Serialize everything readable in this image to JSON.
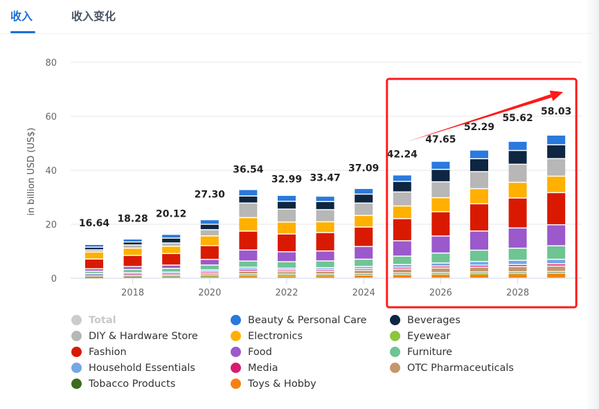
{
  "tabs": [
    {
      "label": "收入",
      "active": true
    },
    {
      "label": "收入变化",
      "active": false
    }
  ],
  "chart_data": {
    "type": "bar",
    "stacked": true,
    "title": "",
    "xlabel": "",
    "ylabel": "in billion USD (US$)",
    "ylim": [
      0,
      80
    ],
    "yticks": [
      0,
      20,
      40,
      60,
      80
    ],
    "xtick_labels_shown": [
      "2018",
      "2020",
      "2022",
      "2024",
      "2026",
      "2028"
    ],
    "grid": true,
    "legend_position": "bottom",
    "categories": [
      "2017",
      "2018",
      "2019",
      "2020",
      "2021",
      "2022",
      "2023",
      "2024",
      "2025",
      "2026",
      "2027",
      "2028",
      "2029"
    ],
    "totals": [
      16.64,
      18.28,
      20.12,
      27.3,
      36.54,
      32.99,
      33.47,
      37.09,
      42.24,
      47.65,
      52.29,
      55.62,
      58.03
    ],
    "total_labels": [
      "16.64",
      "18.28",
      "20.12",
      "27.30",
      "36.54",
      "32.99",
      "33.47",
      "37.09",
      "42.24",
      "47.65",
      "52.29",
      "55.62",
      "58.03"
    ],
    "series": [
      {
        "name": "Toys & Hobby",
        "color": "#f7820f",
        "values": [
          0.4,
          0.55,
          0.6,
          0.75,
          1.0,
          0.95,
          1.0,
          1.1,
          1.3,
          1.45,
          1.6,
          1.7,
          1.8
        ]
      },
      {
        "name": "Eyewear",
        "color": "#8cc63f",
        "values": [
          0.05,
          0.05,
          0.05,
          0.08,
          0.1,
          0.1,
          0.1,
          0.1,
          0.12,
          0.13,
          0.14,
          0.15,
          0.16
        ]
      },
      {
        "name": "Tobacco Products",
        "color": "#3d6b1f",
        "values": [
          0.15,
          0.18,
          0.2,
          0.3,
          0.45,
          0.4,
          0.4,
          0.45,
          0.5,
          0.5,
          0.52,
          0.52,
          0.5
        ]
      },
      {
        "name": "OTC Pharmaceuticals",
        "color": "#c4976a",
        "values": [
          0.4,
          0.45,
          0.5,
          0.8,
          1.1,
          1.0,
          1.1,
          1.3,
          1.5,
          1.7,
          1.85,
          1.95,
          2.05
        ]
      },
      {
        "name": "Media",
        "color": "#d81b72",
        "values": [
          0.4,
          0.45,
          0.5,
          0.6,
          0.7,
          0.6,
          0.6,
          0.6,
          0.65,
          0.7,
          0.72,
          0.75,
          0.8
        ]
      },
      {
        "name": "Household Essentials",
        "color": "#74a7e6",
        "values": [
          0.3,
          0.35,
          0.4,
          0.55,
          0.7,
          0.65,
          0.7,
          0.8,
          1.0,
          1.15,
          1.35,
          1.55,
          1.7
        ]
      },
      {
        "name": "Furniture",
        "color": "#6fc494",
        "values": [
          0.9,
          1.2,
          1.4,
          1.8,
          2.3,
          2.4,
          2.5,
          2.7,
          3.1,
          3.7,
          4.2,
          4.5,
          5.0
        ]
      },
      {
        "name": "Food",
        "color": "#9b59cc",
        "values": [
          0.9,
          1.1,
          1.2,
          2.1,
          4.1,
          3.7,
          3.7,
          4.7,
          5.7,
          6.3,
          7.1,
          7.5,
          7.8
        ]
      },
      {
        "name": "Fashion",
        "color": "#d91a00",
        "values": [
          3.6,
          4.1,
          4.3,
          5.1,
          7.0,
          6.6,
          6.8,
          7.2,
          8.2,
          9.0,
          10.1,
          11.1,
          11.9
        ]
      },
      {
        "name": "Electronics",
        "color": "#ffb000",
        "values": [
          2.6,
          2.7,
          2.7,
          3.6,
          5.0,
          4.4,
          4.0,
          4.3,
          4.7,
          5.2,
          5.6,
          5.8,
          6.1
        ]
      },
      {
        "name": "DIY & Hardware Store",
        "color": "#b7b7b7",
        "values": [
          0.8,
          1.2,
          1.2,
          2.3,
          5.4,
          4.8,
          4.5,
          4.6,
          5.2,
          5.9,
          6.3,
          6.7,
          6.5
        ]
      },
      {
        "name": "Beverages",
        "color": "#0e2641",
        "values": [
          1.0,
          1.1,
          1.8,
          2.0,
          2.6,
          2.9,
          3.0,
          3.3,
          3.9,
          4.6,
          4.8,
          5.1,
          5.12
        ]
      },
      {
        "name": "Beauty & Personal Care",
        "color": "#2a79dd",
        "values": [
          1.0,
          1.1,
          1.4,
          1.7,
          2.4,
          2.2,
          2.0,
          2.1,
          2.4,
          3.0,
          3.2,
          3.4,
          3.6
        ]
      }
    ],
    "legend": [
      {
        "name": "Total",
        "color": "#cccccc",
        "disabled": true
      },
      {
        "name": "Beauty & Personal Care",
        "color": "#2a79dd"
      },
      {
        "name": "Beverages",
        "color": "#0e2641"
      },
      {
        "name": "DIY & Hardware Store",
        "color": "#b7b7b7"
      },
      {
        "name": "Electronics",
        "color": "#ffb000"
      },
      {
        "name": "Eyewear",
        "color": "#8cc63f"
      },
      {
        "name": "Fashion",
        "color": "#d91a00"
      },
      {
        "name": "Food",
        "color": "#9b59cc"
      },
      {
        "name": "Furniture",
        "color": "#6fc494"
      },
      {
        "name": "Household Essentials",
        "color": "#74a7e6"
      },
      {
        "name": "Media",
        "color": "#d81b72"
      },
      {
        "name": "OTC Pharmaceuticals",
        "color": "#c4976a"
      },
      {
        "name": "Tobacco Products",
        "color": "#3d6b1f"
      },
      {
        "name": "Toys & Hobby",
        "color": "#f7820f"
      }
    ],
    "annotations": [
      {
        "type": "highlight-box",
        "covers_categories": [
          "2025",
          "2026",
          "2027",
          "2028",
          "2029"
        ],
        "color": "#ff1a1a"
      },
      {
        "type": "trend-arrow",
        "from_category": "2025",
        "to_category": "2029",
        "direction": "up",
        "color": "#ff1a1a"
      }
    ]
  }
}
